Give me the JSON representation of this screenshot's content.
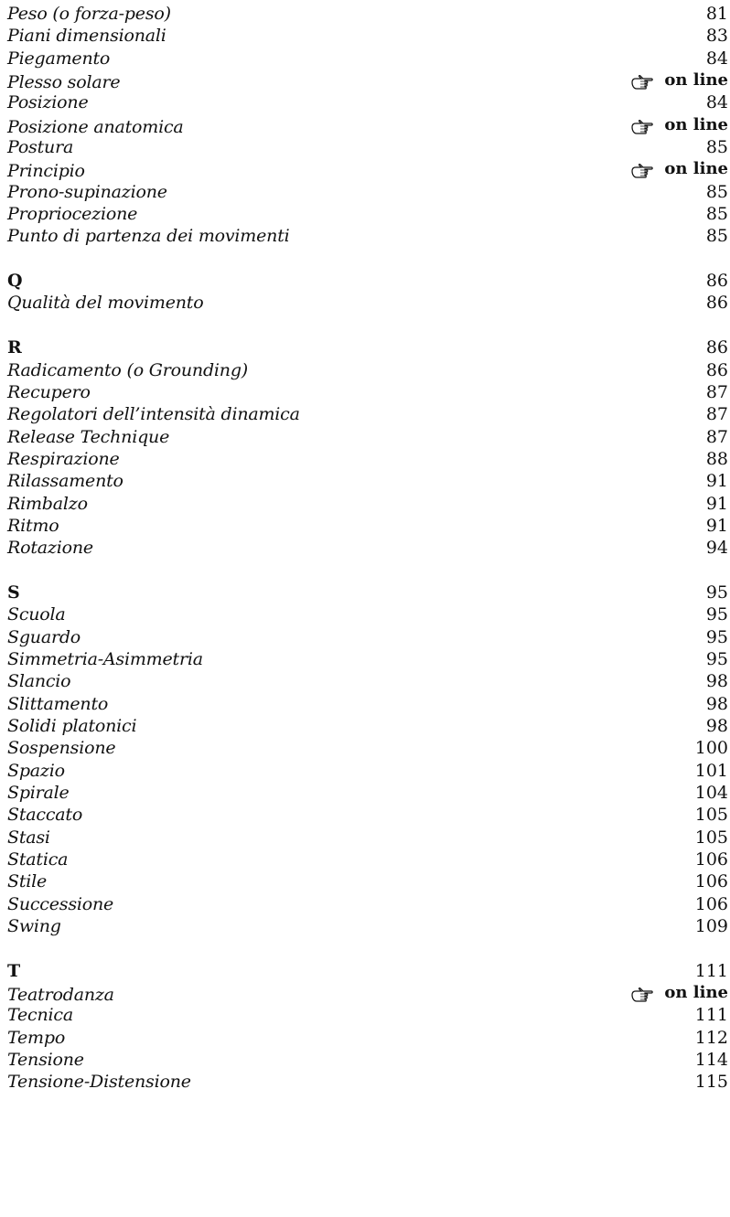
{
  "index": {
    "group_p": [
      {
        "term": "Peso (o forza-peso)",
        "page": "81"
      },
      {
        "term": "Piani dimensionali",
        "page": "83"
      },
      {
        "term": "Piegamento",
        "page": "84"
      },
      {
        "term": "Plesso solare",
        "page": "on line"
      },
      {
        "term": "Posizione",
        "page": "84"
      },
      {
        "term": "Posizione anatomica",
        "page": "on line"
      },
      {
        "term": "Postura",
        "page": "85"
      },
      {
        "term": "Principio",
        "page": "on line"
      },
      {
        "term": "Prono-supinazione",
        "page": "85"
      },
      {
        "term": "Propriocezione",
        "page": "85"
      },
      {
        "term": "Punto di partenza dei movimenti",
        "page": "85"
      }
    ],
    "group_q": {
      "letter": "Q",
      "page": "86",
      "items": [
        {
          "term": "Qualità del movimento",
          "page": "86"
        }
      ]
    },
    "group_r": {
      "letter": "R",
      "page": "86",
      "items": [
        {
          "term": "Radicamento (o Grounding)",
          "page": "86"
        },
        {
          "term": "Recupero",
          "page": "87"
        },
        {
          "term": "Regolatori dell’intensità dinamica",
          "page": "87"
        },
        {
          "term": "Release Technique",
          "page": "87"
        },
        {
          "term": "Respirazione",
          "page": "88"
        },
        {
          "term": "Rilassamento",
          "page": "91"
        },
        {
          "term": "Rimbalzo",
          "page": "91"
        },
        {
          "term": "Ritmo",
          "page": "91"
        },
        {
          "term": "Rotazione",
          "page": "94"
        }
      ]
    },
    "group_s": {
      "letter": "S",
      "page": "95",
      "items": [
        {
          "term": "Scuola",
          "page": "95"
        },
        {
          "term": "Sguardo",
          "page": "95"
        },
        {
          "term": "Simmetria-Asimmetria",
          "page": "95"
        },
        {
          "term": "Slancio",
          "page": "98"
        },
        {
          "term": "Slittamento",
          "page": "98"
        },
        {
          "term": "Solidi platonici",
          "page": "98"
        },
        {
          "term": "Sospensione",
          "page": "100"
        },
        {
          "term": "Spazio",
          "page": "101"
        },
        {
          "term": "Spirale",
          "page": "104"
        },
        {
          "term": "Staccato",
          "page": "105"
        },
        {
          "term": "Stasi",
          "page": "105"
        },
        {
          "term": "Statica",
          "page": "106"
        },
        {
          "term": "Stile",
          "page": "106"
        },
        {
          "term": "Successione",
          "page": "106"
        },
        {
          "term": "Swing",
          "page": "109"
        }
      ]
    },
    "group_t": {
      "letter": "T",
      "page": "111",
      "items": [
        {
          "term": "Teatrodanza",
          "page": "on line"
        },
        {
          "term": "Tecnica",
          "page": "111"
        },
        {
          "term": "Tempo",
          "page": "112"
        },
        {
          "term": "Tensione",
          "page": "114"
        },
        {
          "term": "Tensione-Distensione",
          "page": "115"
        }
      ]
    }
  },
  "icons": {
    "online_marker": "pointing-hand-icon"
  }
}
